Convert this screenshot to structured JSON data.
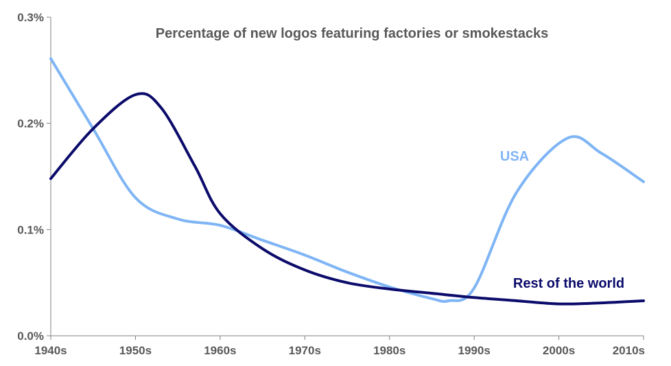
{
  "chart_data": {
    "type": "line",
    "title": "Percentage of new logos featuring factories or smokestacks",
    "categories": [
      "1940s",
      "1950s",
      "1960s",
      "1970s",
      "1980s",
      "1990s",
      "2000s",
      "2010s"
    ],
    "y_ticks": [
      "0.0%",
      "0.1%",
      "0.2%",
      "0.3%"
    ],
    "ylim": [
      0,
      0.3
    ],
    "y_unit": "%",
    "grid": false,
    "series": [
      {
        "name": "USA",
        "color": "#7fb5f5",
        "x": [
          1940,
          1945,
          1950,
          1955,
          1960,
          1965,
          1970,
          1975,
          1980,
          1985,
          1987,
          1990,
          1995,
          2001,
          2005,
          2010
        ],
        "values": [
          0.261,
          0.195,
          0.13,
          0.11,
          0.104,
          0.09,
          0.076,
          0.06,
          0.046,
          0.035,
          0.033,
          0.045,
          0.135,
          0.186,
          0.172,
          0.145
        ]
      },
      {
        "name": "Rest of the world",
        "color": "#0b0b6b",
        "x": [
          1940,
          1945,
          1950,
          1953,
          1957,
          1960,
          1965,
          1970,
          1975,
          1980,
          1985,
          1990,
          1995,
          2000,
          2005,
          2010
        ],
        "values": [
          0.148,
          0.195,
          0.227,
          0.215,
          0.16,
          0.115,
          0.082,
          0.062,
          0.05,
          0.044,
          0.04,
          0.036,
          0.033,
          0.03,
          0.031,
          0.033
        ]
      }
    ]
  }
}
